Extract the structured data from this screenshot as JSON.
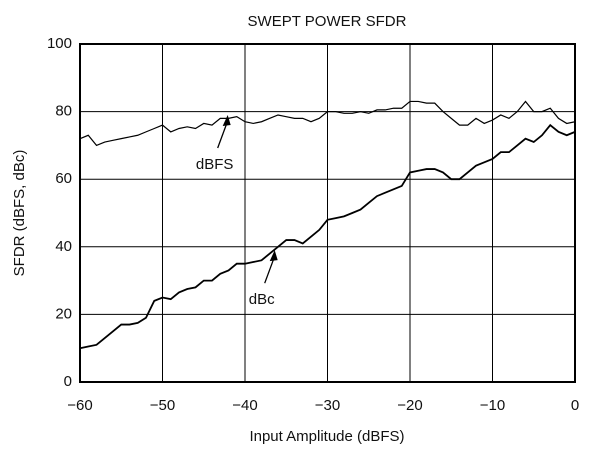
{
  "chart_data": {
    "type": "line",
    "title": "SWEPT POWER SFDR",
    "xlabel": "Input Amplitude (dBFS)",
    "ylabel": "SFDR (dBFS, dBc)",
    "x": [
      -60,
      -59,
      -58,
      -57,
      -56,
      -55,
      -54,
      -53,
      -52,
      -51,
      -50,
      -49,
      -48,
      -47,
      -46,
      -45,
      -44,
      -43,
      -42,
      -41,
      -40,
      -39,
      -38,
      -37,
      -36,
      -35,
      -34,
      -33,
      -32,
      -31,
      -30,
      -29,
      -28,
      -27,
      -26,
      -25,
      -24,
      -23,
      -22,
      -21,
      -20,
      -19,
      -18,
      -17,
      -16,
      -15,
      -14,
      -13,
      -12,
      -11,
      -10,
      -9,
      -8,
      -7,
      -6,
      -5,
      -4,
      -3,
      -2,
      -1,
      0
    ],
    "series": [
      {
        "name": "dBFS",
        "color": "#000000",
        "values": [
          72,
          73,
          70,
          71,
          71.5,
          72,
          72.5,
          73,
          74,
          75,
          76,
          74,
          75,
          75.5,
          75,
          76.5,
          76,
          78,
          78,
          78.5,
          77,
          76.5,
          77,
          78,
          79,
          78.5,
          78,
          78,
          77,
          78,
          80,
          80,
          79.5,
          79.5,
          80,
          79.5,
          80.5,
          80.5,
          81,
          81,
          83,
          83,
          82.5,
          82.5,
          80,
          78,
          76,
          76,
          78,
          76.5,
          77.5,
          79,
          78,
          80,
          83,
          80,
          80,
          81,
          78,
          76.5,
          77
        ]
      },
      {
        "name": "dBc",
        "color": "#000000",
        "values": [
          10,
          10.5,
          11,
          13,
          15,
          17,
          17,
          17.5,
          19,
          24,
          25,
          24.5,
          26.5,
          27.5,
          28,
          30,
          30,
          32,
          33,
          35,
          35,
          35.5,
          36,
          38,
          40,
          42,
          42,
          41,
          43,
          45,
          48,
          48.5,
          49,
          50,
          51,
          53,
          55,
          56,
          57,
          58,
          62,
          62.5,
          63,
          63,
          62,
          60,
          60,
          62,
          64,
          65,
          66,
          68,
          68,
          70,
          72,
          71,
          73,
          76,
          74,
          73,
          74
        ]
      }
    ],
    "annotations": [
      {
        "text": "dBFS",
        "x": -42.1,
        "y": 79
      },
      {
        "text": "dBc",
        "x": -36.4,
        "y": 39
      }
    ],
    "xlim": [
      -60,
      0
    ],
    "xticks": [
      {
        "value": -60,
        "label": "−60"
      },
      {
        "value": -50,
        "label": "−50"
      },
      {
        "value": -40,
        "label": "−40"
      },
      {
        "value": -30,
        "label": "−30"
      },
      {
        "value": -20,
        "label": "−20"
      },
      {
        "value": -10,
        "label": "−10"
      },
      0
    ],
    "ylim": [
      0,
      100
    ],
    "yticks": [
      0,
      20,
      40,
      60,
      80,
      100
    ],
    "grid": true
  }
}
